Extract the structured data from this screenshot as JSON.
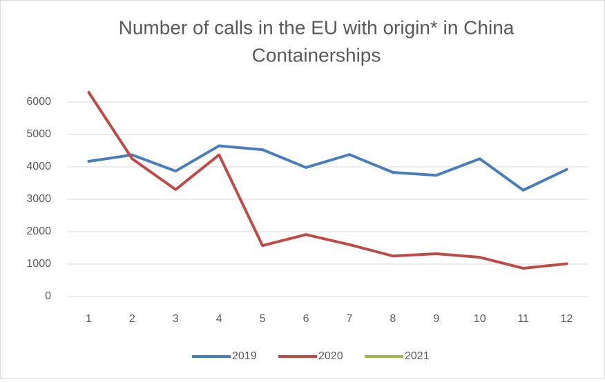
{
  "chart_data": {
    "type": "line",
    "title": "Number of calls in the EU with origin* in China",
    "subtitle": "Containerships",
    "categories": [
      "1",
      "2",
      "3",
      "4",
      "5",
      "6",
      "7",
      "8",
      "9",
      "10",
      "11",
      "12"
    ],
    "series": [
      {
        "name": "2019",
        "color": "#4a7ebb",
        "values": [
          4170,
          4370,
          3870,
          4650,
          4530,
          3980,
          4380,
          3830,
          3740,
          4250,
          3280,
          3920
        ]
      },
      {
        "name": "2020",
        "color": "#be4b48",
        "values": [
          6300,
          4250,
          3300,
          4370,
          1570,
          1910,
          1600,
          1250,
          1320,
          1210,
          870,
          1010
        ]
      },
      {
        "name": "2021",
        "color": "#98b954",
        "values": [
          null,
          null,
          null,
          null,
          null,
          null,
          null,
          null,
          null,
          null,
          null,
          null
        ]
      }
    ],
    "ylim": [
      0,
      6000
    ],
    "yticks": [
      0,
      1000,
      2000,
      3000,
      4000,
      5000,
      6000
    ],
    "grid": true,
    "legend": "bottom"
  }
}
